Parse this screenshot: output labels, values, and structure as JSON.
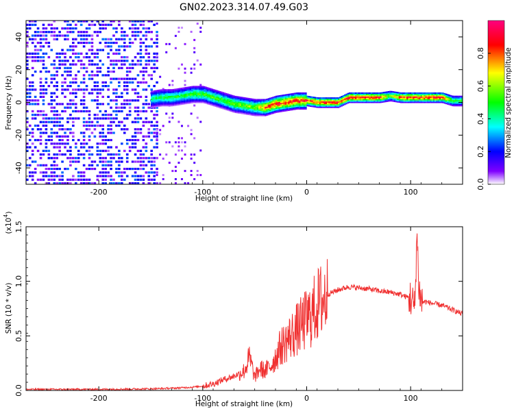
{
  "figure": {
    "title": "GN02.2023.314.07.49.G03"
  },
  "chart_data": [
    {
      "type": "heatmap",
      "xlabel": "Height of straight line (km)",
      "ylabel": "Frequency (Hz)",
      "xlim": [
        -270,
        150
      ],
      "ylim": [
        -50,
        50
      ],
      "xticks": [
        -200,
        -100,
        0,
        100
      ],
      "xtick_labels": [
        "-200",
        "-100",
        "0",
        "100"
      ],
      "yticks": [
        -40,
        -20,
        0,
        20,
        40
      ],
      "ytick_labels": [
        "-40",
        "-20",
        "0",
        "20",
        "40"
      ],
      "colorbar": {
        "label": "Normalized spectral amplitude",
        "range": [
          0,
          1
        ],
        "ticks": [
          0.0,
          0.2,
          0.4,
          0.6,
          0.8
        ],
        "tick_labels": [
          "0.0",
          "0.2",
          "0.4",
          "0.6",
          "0.8"
        ],
        "colors": [
          "#ffffff",
          "#7f00ff",
          "#0000ff",
          "#00ffff",
          "#00ff00",
          "#ffff00",
          "#ff0000",
          "#ff007f"
        ]
      },
      "signal_track": {
        "x": [
          -150,
          -140,
          -130,
          -120,
          -110,
          -100,
          -90,
          -80,
          -70,
          -60,
          -50,
          -40,
          -30,
          -20,
          -10,
          0,
          10,
          20,
          30,
          40,
          50,
          60,
          70,
          80,
          90,
          100,
          110,
          120,
          130,
          140,
          150
        ],
        "freq": [
          2,
          3,
          3,
          4,
          5,
          5,
          3,
          1,
          -1,
          -2,
          -3,
          -3,
          -1,
          0,
          1,
          1,
          0,
          0,
          0,
          3,
          3,
          3,
          3,
          4,
          3,
          3,
          3,
          3,
          3,
          1,
          1
        ],
        "amplitude": [
          0.45,
          0.5,
          0.5,
          0.5,
          0.55,
          0.55,
          0.55,
          0.55,
          0.6,
          0.6,
          0.6,
          0.85,
          0.9,
          0.9,
          0.9,
          0.9,
          0.9,
          0.9,
          0.9,
          0.9,
          0.9,
          0.9,
          0.9,
          0.6,
          0.9,
          0.9,
          0.9,
          0.9,
          0.9,
          0.55,
          0.55
        ]
      },
      "noise_region_x": [
        -270,
        -145
      ]
    },
    {
      "type": "line",
      "xlabel": "Height of straight line (km)",
      "ylabel": "SNR (10 * v/v)",
      "yscale_label": "(x10",
      "yscale_exp": "4",
      "yscale_close": ")",
      "xlim": [
        -270,
        150
      ],
      "ylim": [
        0,
        1.5
      ],
      "xticks": [
        -200,
        -100,
        0,
        100
      ],
      "xtick_labels": [
        "-200",
        "-100",
        "0",
        "100"
      ],
      "yticks": [
        0.0,
        0.5,
        1.0,
        1.5
      ],
      "ytick_labels": [
        "0.0",
        "0.5",
        "1.0",
        "1.5"
      ],
      "line_color": "#f03030",
      "series": [
        {
          "x": [
            -270,
            -250,
            -200,
            -150,
            -130,
            -110,
            -100,
            -90,
            -80,
            -70,
            -60,
            -55,
            -50,
            -45,
            -40,
            -35,
            -30,
            -25,
            -20,
            -15,
            -10,
            -5,
            0,
            5,
            10,
            20,
            30,
            40,
            50,
            60,
            70,
            80,
            90,
            95,
            100,
            104,
            106,
            108,
            110,
            120,
            130,
            140,
            150
          ],
          "y": [
            0.01,
            0.01,
            0.01,
            0.015,
            0.02,
            0.03,
            0.04,
            0.06,
            0.1,
            0.13,
            0.18,
            0.3,
            0.12,
            0.2,
            0.18,
            0.22,
            0.3,
            0.4,
            0.45,
            0.5,
            0.55,
            0.6,
            0.65,
            0.7,
            0.78,
            0.88,
            0.92,
            0.95,
            0.94,
            0.93,
            0.91,
            0.9,
            0.88,
            0.86,
            0.85,
            0.75,
            1.45,
            0.95,
            0.82,
            0.8,
            0.78,
            0.74,
            0.7
          ]
        }
      ]
    }
  ]
}
